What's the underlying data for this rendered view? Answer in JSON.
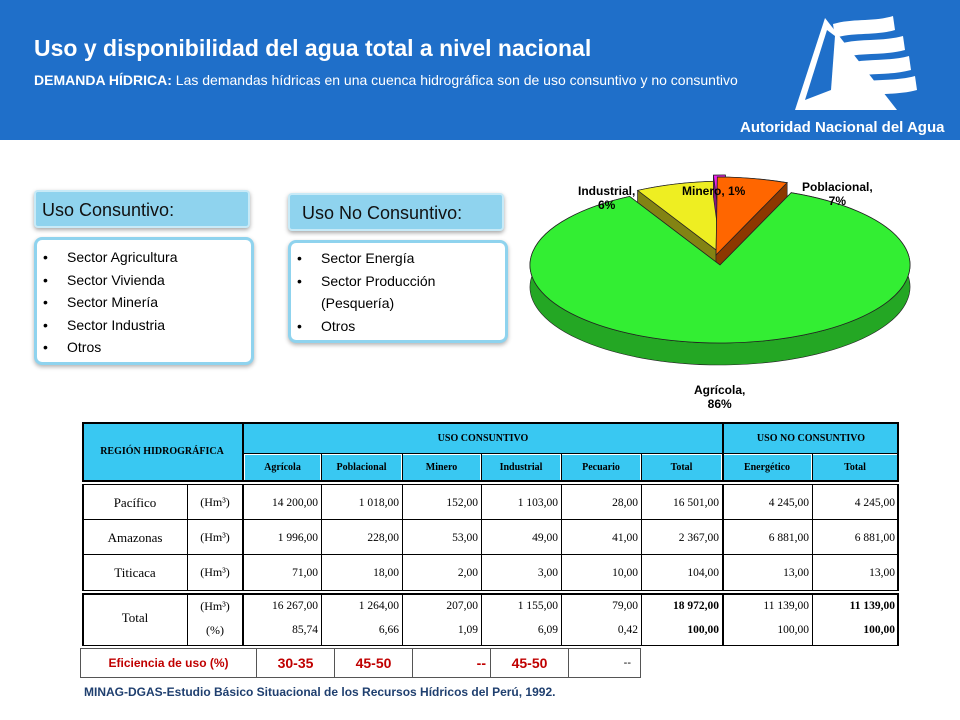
{
  "header": {
    "title": "Uso y disponibilidad del agua total a nivel nacional",
    "subtitle_bold": "DEMANDA HÍDRICA:",
    "subtitle_text": " Las demandas hídricas en una cuenca hidrográfica son de uso consuntivo y no consuntivo",
    "logo_text": "Autoridad Nacional del Agua",
    "color": "#1f6fc9"
  },
  "consuntivo": {
    "title": "Uso Consuntivo:",
    "items": [
      "Sector Agricultura",
      "Sector Vivienda",
      "Sector Minería",
      "Sector Industria",
      "Otros"
    ]
  },
  "no_consuntivo": {
    "title": "Uso No Consuntivo:",
    "items": [
      "Sector Energía",
      "Sector Producción (Pesquería)",
      "Otros"
    ]
  },
  "chart_data": {
    "type": "pie",
    "slices": [
      {
        "label": "Agrícola,",
        "value": 86,
        "value_text": "86%",
        "color": "#33ee33"
      },
      {
        "label": "Poblacional,",
        "value": 7,
        "value_text": "7%",
        "color": "#eeee22"
      },
      {
        "label": "Minero, 1%",
        "value": 1,
        "value_text": "",
        "color": "#ee22ee"
      },
      {
        "label": "Industrial,",
        "value": 6,
        "value_text": "6%",
        "color": "#ff6600"
      }
    ]
  },
  "table": {
    "region_header": "REGIÓN HIDROGRÁFICA",
    "consuntivo_header": "USO CONSUNTIVO",
    "no_consuntivo_header": "USO NO CONSUNTIVO",
    "columns": [
      "Agrícola",
      "Poblacional",
      "Minero",
      "Industrial",
      "Pecuario",
      "Total",
      "Energético",
      "Total"
    ],
    "unit_hm": "(Hm³)",
    "unit_pct": "(%)",
    "rows": [
      {
        "region": "Pacífico",
        "values": [
          "14 200,00",
          "1 018,00",
          "152,00",
          "1 103,00",
          "28,00",
          "16 501,00",
          "4 245,00",
          "4 245,00"
        ]
      },
      {
        "region": "Amazonas",
        "values": [
          "1 996,00",
          "228,00",
          "53,00",
          "49,00",
          "41,00",
          "2 367,00",
          "6 881,00",
          "6 881,00"
        ]
      },
      {
        "region": "Titicaca",
        "values": [
          "71,00",
          "18,00",
          "2,00",
          "3,00",
          "10,00",
          "104,00",
          "13,00",
          "13,00"
        ]
      }
    ],
    "total_label": "Total",
    "total_hm": [
      "16 267,00",
      "1 264,00",
      "207,00",
      "1 155,00",
      "79,00",
      "18 972,00",
      "11 139,00",
      "11 139,00"
    ],
    "total_pct": [
      "85,74",
      "6,66",
      "1,09",
      "6,09",
      "0,42",
      "100,00",
      "100,00",
      "100,00"
    ]
  },
  "efficiency": {
    "label": "Eficiencia de uso (%)",
    "values": [
      "30-35",
      "45-50",
      "--",
      "45-50",
      "--"
    ]
  },
  "footer": "MINAG-DGAS-Estudio Básico Situacional de los Recursos Hídricos del Perú, 1992."
}
